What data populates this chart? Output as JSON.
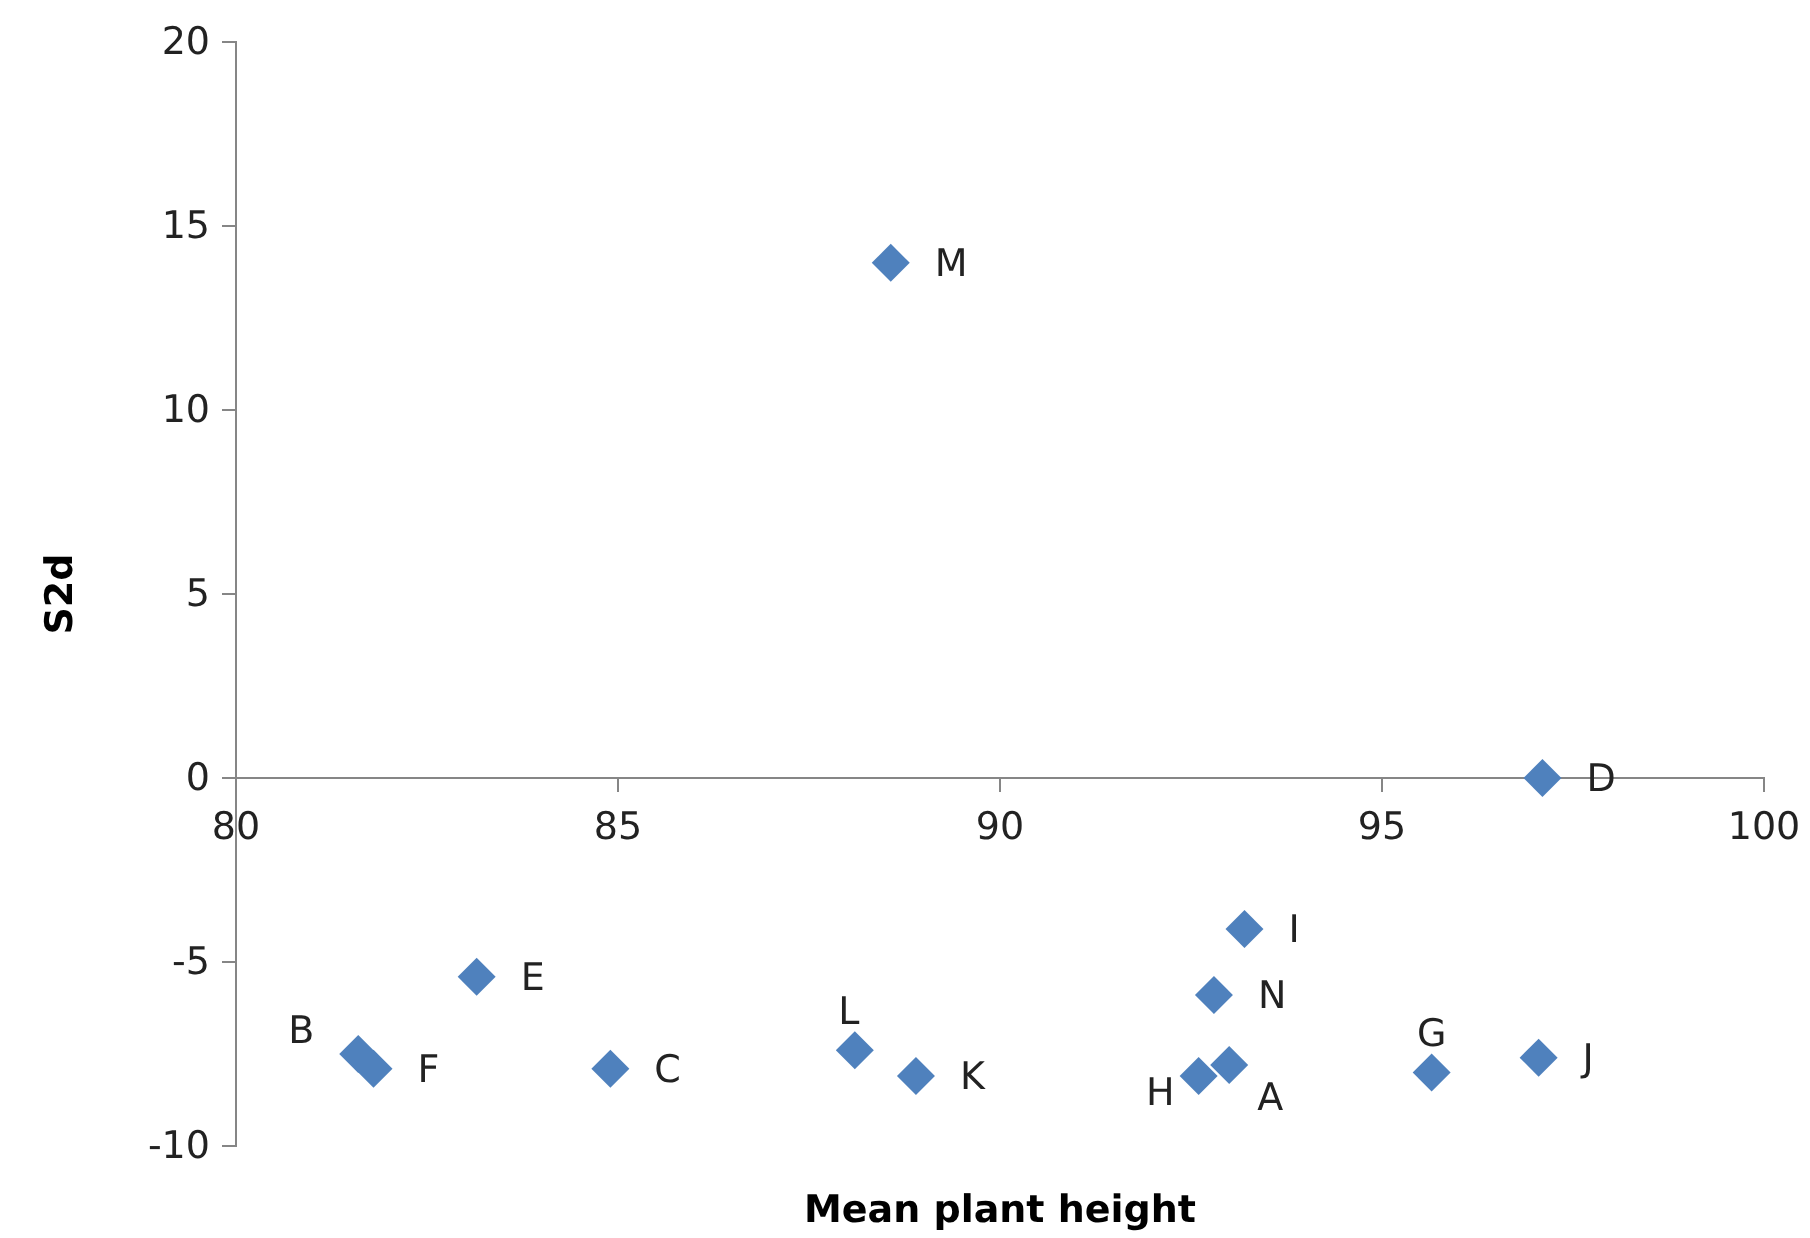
{
  "chart_data": {
    "type": "scatter",
    "xlabel": "Mean plant height",
    "ylabel": "S2d",
    "marker": "diamond",
    "grid": false,
    "xlim": [
      80,
      100
    ],
    "xticks": [
      80,
      85,
      90,
      95,
      100
    ],
    "ylim": [
      -10,
      20
    ],
    "yticks": [
      -10,
      -5,
      0,
      5,
      10,
      15,
      20
    ],
    "series": [
      {
        "color": "#4f81bd",
        "x": [
          93.0,
          81.6,
          84.9,
          97.1,
          83.15,
          81.8,
          95.65,
          92.6,
          93.2,
          97.05,
          88.9,
          88.1,
          88.57,
          92.8
        ],
        "values": [
          -7.8,
          -7.5,
          -7.9,
          0,
          -5.4,
          -7.9,
          -8.0,
          -8.1,
          -4.1,
          -7.6,
          -8.1,
          -7.4,
          14,
          -5.9
        ]
      }
    ],
    "annotations": [
      {
        "text": "A",
        "x": 93.0,
        "y": -7.8
      },
      {
        "text": "B",
        "x": 81.6,
        "y": -7.5
      },
      {
        "text": "C",
        "x": 84.9,
        "y": -7.9
      },
      {
        "text": "D",
        "x": 97.1,
        "y": 0
      },
      {
        "text": "E",
        "x": 83.15,
        "y": -5.4
      },
      {
        "text": "F",
        "x": 81.8,
        "y": -7.9
      },
      {
        "text": "G",
        "x": 95.65,
        "y": -8.0
      },
      {
        "text": "H",
        "x": 92.6,
        "y": -8.1
      },
      {
        "text": "I",
        "x": 93.2,
        "y": -4.1
      },
      {
        "text": "J",
        "x": 97.05,
        "y": -7.6
      },
      {
        "text": "K",
        "x": 88.9,
        "y": -8.1
      },
      {
        "text": "L",
        "x": 88.1,
        "y": -7.4
      },
      {
        "text": "M",
        "x": 88.57,
        "y": 14
      },
      {
        "text": "N",
        "x": 92.8,
        "y": -5.9
      }
    ]
  }
}
